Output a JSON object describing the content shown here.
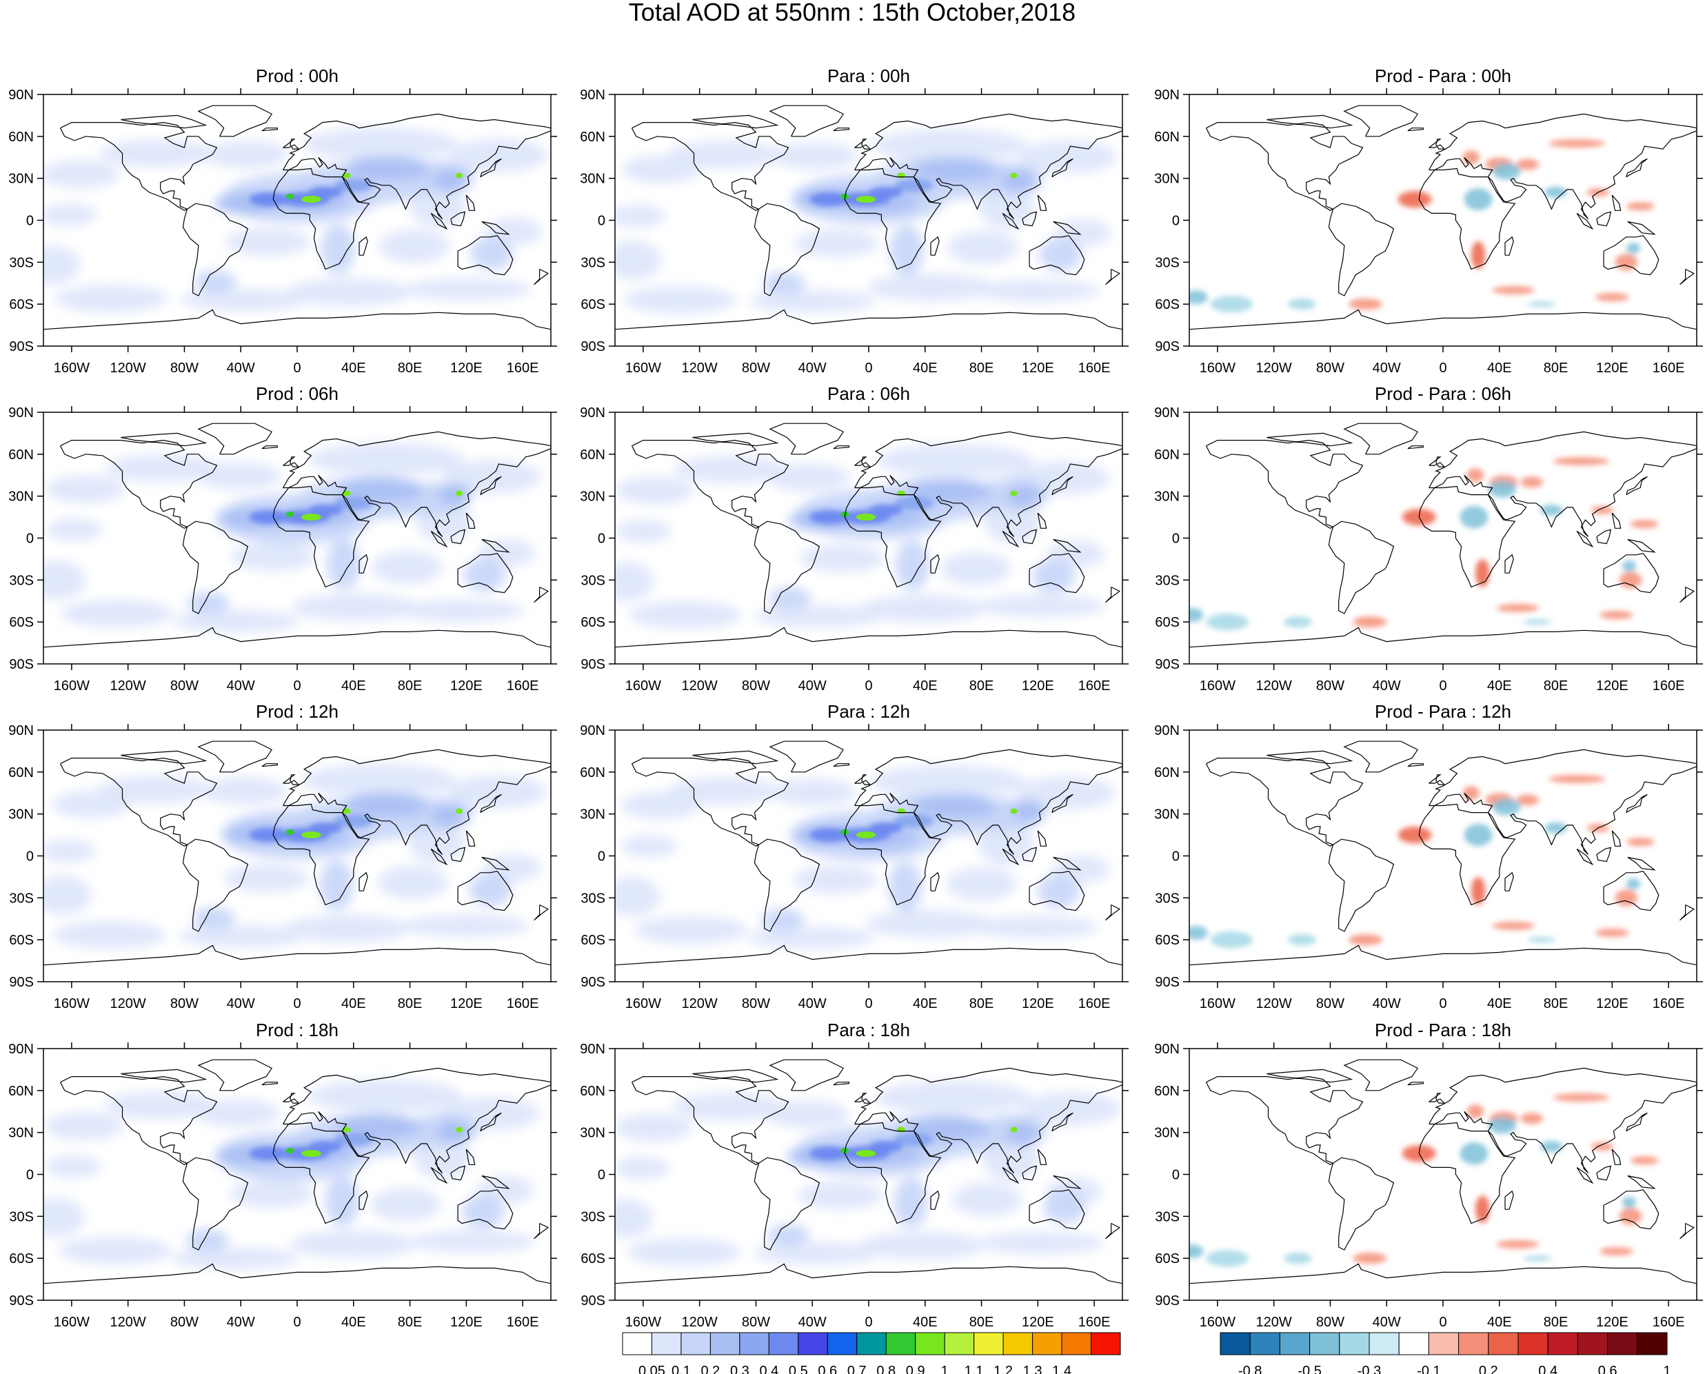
{
  "title": "Total AOD at 550nm : 15th October,2018",
  "columns": [
    "Prod",
    "Para",
    "Prod - Para"
  ],
  "hours": [
    "00h",
    "06h",
    "12h",
    "18h"
  ],
  "panels": [
    {
      "column": 0,
      "row": 0,
      "label": "Prod : 00h"
    },
    {
      "column": 1,
      "row": 0,
      "label": "Para : 00h"
    },
    {
      "column": 2,
      "row": 0,
      "label": "Prod - Para : 00h"
    },
    {
      "column": 0,
      "row": 1,
      "label": "Prod : 06h"
    },
    {
      "column": 1,
      "row": 1,
      "label": "Para : 06h"
    },
    {
      "column": 2,
      "row": 1,
      "label": "Prod - Para : 06h"
    },
    {
      "column": 0,
      "row": 2,
      "label": "Prod : 12h"
    },
    {
      "column": 1,
      "row": 2,
      "label": "Para : 12h"
    },
    {
      "column": 2,
      "row": 2,
      "label": "Prod - Para : 12h"
    },
    {
      "column": 0,
      "row": 3,
      "label": "Prod : 18h"
    },
    {
      "column": 1,
      "row": 3,
      "label": "Para : 18h"
    },
    {
      "column": 2,
      "row": 3,
      "label": "Prod - Para : 18h"
    }
  ],
  "axes": {
    "lon_ticks": [
      "160W",
      "120W",
      "80W",
      "40W",
      "0",
      "40E",
      "80E",
      "120E",
      "160E"
    ],
    "lon_values": [
      -160,
      -120,
      -80,
      -40,
      0,
      40,
      80,
      120,
      160
    ],
    "lat_ticks": [
      "90N",
      "60N",
      "30N",
      "0",
      "30S",
      "60S",
      "90S"
    ],
    "lat_values": [
      90,
      60,
      30,
      0,
      -30,
      -60,
      -90
    ],
    "lon_range": [
      -180,
      180
    ],
    "lat_range": [
      -90,
      90
    ]
  },
  "colorbars": {
    "aod": {
      "labels": [
        "0.05",
        "0.1",
        "0.2",
        "0.3",
        "0.4",
        "0.5",
        "0.6",
        "0.7",
        "0.8",
        "0.9",
        "1",
        "1.1",
        "1.2",
        "1.3",
        "1.4"
      ],
      "colors": [
        "#ffffff",
        "#dde6fb",
        "#c6d5f8",
        "#a9bff4",
        "#8aa8f0",
        "#6e8af0",
        "#4646e8",
        "#1464ee",
        "#0096a0",
        "#32c832",
        "#78e61e",
        "#b4f03c",
        "#f0f032",
        "#f5c800",
        "#f5a000",
        "#f57800",
        "#f51400"
      ]
    },
    "diff": {
      "labels": [
        "-0.8",
        "-0.5",
        "-0.3",
        "-0.1",
        "0.2",
        "0.4",
        "0.6",
        "1"
      ],
      "colors": [
        "#08589e",
        "#2f83bc",
        "#5aa5cd",
        "#7ec0d8",
        "#a5d8e6",
        "#cdebf2",
        "#ffffff",
        "#f8bcac",
        "#f4907a",
        "#ec6248",
        "#dc3228",
        "#c01c26",
        "#a0141e",
        "#7a0a14",
        "#500000"
      ]
    }
  },
  "map_features": {
    "dust_core_color": "#6e8af0",
    "dust_peak_color": "#78e61e",
    "background_aod_color": "#dde6fb",
    "diff_positive_color": "#f4907a",
    "diff_negative_color": "#7ec0d8"
  }
}
